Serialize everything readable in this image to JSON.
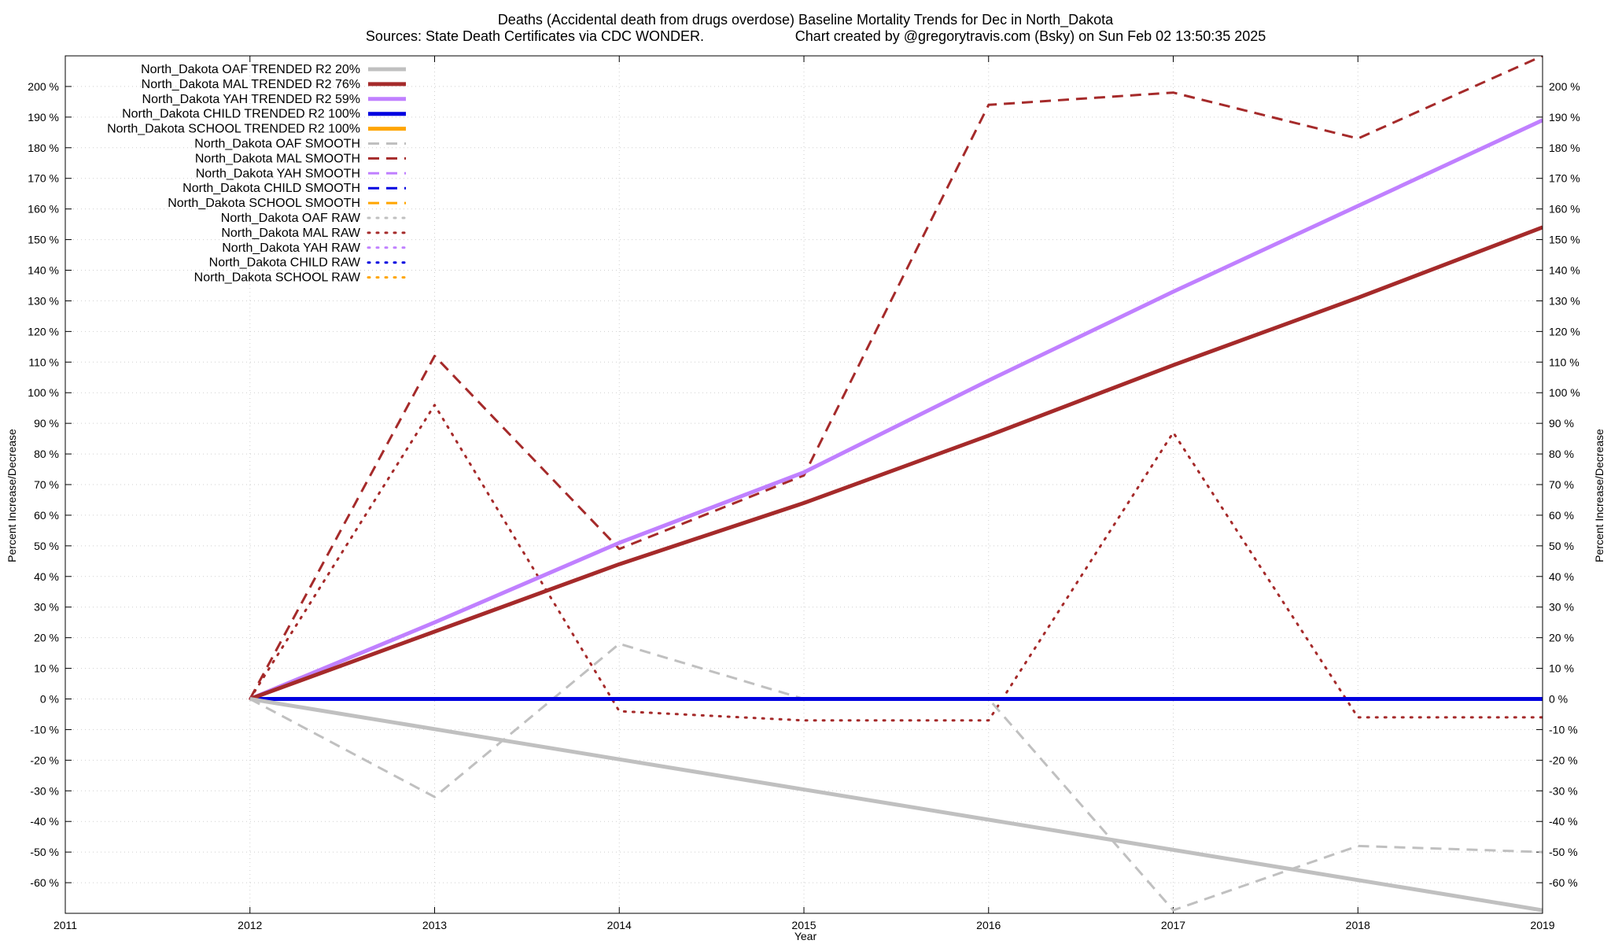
{
  "chart_data": {
    "type": "line",
    "title": "Deaths (Accidental death from drugs overdose)  Baseline Mortality Trends for Dec in North_Dakota",
    "subtitle_left": "Sources: State Death Certificates via CDC WONDER.",
    "subtitle_right": "Chart created by @gregorytravis.com (Bsky) on Sun Feb 02 13:50:35 2025",
    "xlabel": "Year",
    "ylabel_left": "Percent Increase/Decrease",
    "ylabel_right": "Percent Increase/Decrease",
    "xlim": [
      2011,
      2019
    ],
    "ylim": [
      -70,
      210
    ],
    "x_ticks": [
      "2011",
      "2012",
      "2013",
      "2014",
      "2015",
      "2016",
      "2017",
      "2018",
      "2019"
    ],
    "y_ticks": [
      "-60 %",
      "-50 %",
      "-40 %",
      "-30 %",
      "-20 %",
      "-10 %",
      "0 %",
      "10 %",
      "20 %",
      "30 %",
      "40 %",
      "50 %",
      "60 %",
      "70 %",
      "80 %",
      "90 %",
      "100 %",
      "110 %",
      "120 %",
      "130 %",
      "140 %",
      "150 %",
      "160 %",
      "170 %",
      "180 %",
      "190 %",
      "200 %"
    ],
    "grid": true,
    "legend_position": "top-left",
    "series": [
      {
        "name": "North_Dakota OAF TRENDED R2  20%",
        "color": "#c0c0c0",
        "style": "solid",
        "width": 5,
        "x": [
          2012,
          2019
        ],
        "y": [
          0,
          -69
        ]
      },
      {
        "name": "North_Dakota MAL TRENDED R2  76%",
        "color": "#a52a2a",
        "style": "solid",
        "width": 5,
        "x": [
          2012,
          2013,
          2014,
          2015,
          2016,
          2017,
          2018,
          2019
        ],
        "y": [
          0,
          22,
          44,
          64,
          86,
          109,
          131,
          154
        ]
      },
      {
        "name": "North_Dakota YAH TRENDED R2  59%",
        "color": "#c080ff",
        "style": "solid",
        "width": 5,
        "x": [
          2012,
          2013,
          2014,
          2015,
          2016,
          2017,
          2018,
          2019
        ],
        "y": [
          0,
          25,
          51,
          74,
          104,
          133,
          161,
          189
        ]
      },
      {
        "name": "North_Dakota CHILD TRENDED R2 100%",
        "color": "#0000e0",
        "style": "solid",
        "width": 5,
        "x": [
          2012,
          2019
        ],
        "y": [
          0,
          0
        ]
      },
      {
        "name": "North_Dakota SCHOOL TRENDED R2 100%",
        "color": "#ffa500",
        "style": "solid",
        "width": 5,
        "x": [],
        "y": []
      },
      {
        "name": "North_Dakota OAF SMOOTH",
        "color": "#c0c0c0",
        "style": "dash",
        "width": 3,
        "x": [
          2012,
          2013,
          2014,
          2015,
          2016,
          2017,
          2018,
          2019
        ],
        "y": [
          0,
          -32,
          18,
          0,
          0,
          -69,
          -48,
          -50
        ]
      },
      {
        "name": "North_Dakota MAL SMOOTH",
        "color": "#a52a2a",
        "style": "dash",
        "width": 3,
        "x": [
          2012,
          2013,
          2014,
          2015,
          2016,
          2017,
          2018,
          2019
        ],
        "y": [
          0,
          112,
          49,
          73,
          194,
          198,
          183,
          210
        ]
      },
      {
        "name": "North_Dakota YAH SMOOTH",
        "color": "#c080ff",
        "style": "dash",
        "width": 3,
        "x": [],
        "y": []
      },
      {
        "name": "North_Dakota CHILD SMOOTH",
        "color": "#0000e0",
        "style": "dash",
        "width": 3,
        "x": [],
        "y": []
      },
      {
        "name": "North_Dakota SCHOOL SMOOTH",
        "color": "#ffa500",
        "style": "dash",
        "width": 3,
        "x": [],
        "y": []
      },
      {
        "name": "North_Dakota OAF RAW",
        "color": "#c0c0c0",
        "style": "dot",
        "width": 3,
        "x": [],
        "y": []
      },
      {
        "name": "North_Dakota MAL RAW",
        "color": "#a52a2a",
        "style": "dot",
        "width": 3,
        "x": [
          2012,
          2013,
          2014,
          2015,
          2016,
          2017,
          2018,
          2019
        ],
        "y": [
          0,
          96,
          -4,
          -7,
          -7,
          87,
          -6,
          -6
        ]
      },
      {
        "name": "North_Dakota YAH RAW",
        "color": "#c080ff",
        "style": "dot",
        "width": 3,
        "x": [],
        "y": []
      },
      {
        "name": "North_Dakota CHILD RAW",
        "color": "#0000e0",
        "style": "dot",
        "width": 3,
        "x": [],
        "y": []
      },
      {
        "name": "North_Dakota SCHOOL RAW",
        "color": "#ffa500",
        "style": "dot",
        "width": 3,
        "x": [],
        "y": []
      }
    ]
  }
}
